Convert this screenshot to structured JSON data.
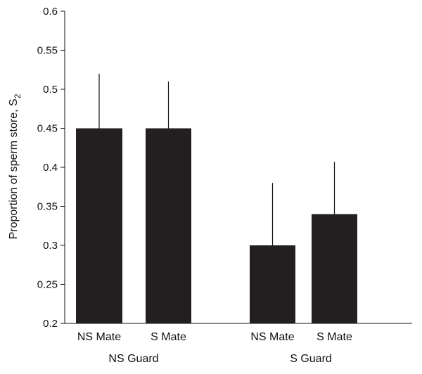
{
  "chart_data": {
    "type": "bar",
    "title": "",
    "ylabel": "Proportion of sperm store, S",
    "ylabel_subscript": "2",
    "ylim": [
      0.2,
      0.6
    ],
    "yticks": [
      0.2,
      0.25,
      0.3,
      0.35,
      0.4,
      0.45,
      0.5,
      0.55,
      0.6
    ],
    "ytick_labels": [
      "0.2",
      "0.25",
      "0.3",
      "0.35",
      "0.4",
      "0.45",
      "0.5",
      "0.55",
      "0.6"
    ],
    "groups": [
      {
        "label": "NS Guard",
        "bars": [
          {
            "category": "NS Mate",
            "value": 0.45,
            "error_upper": 0.52
          },
          {
            "category": "S Mate",
            "value": 0.45,
            "error_upper": 0.51
          }
        ]
      },
      {
        "label": "S Guard",
        "bars": [
          {
            "category": "NS Mate",
            "value": 0.3,
            "error_upper": 0.38
          },
          {
            "category": "S Mate",
            "value": 0.34,
            "error_upper": 0.407
          }
        ]
      }
    ],
    "bar_color": "#231f20",
    "grid": false,
    "legend": "none"
  }
}
